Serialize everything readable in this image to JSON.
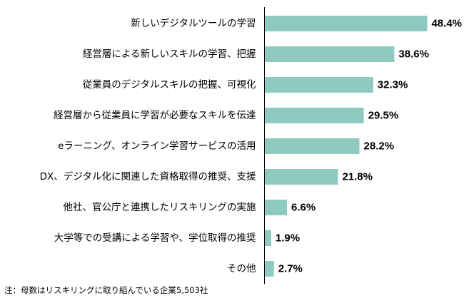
{
  "chart_data": {
    "type": "bar",
    "orientation": "horizontal",
    "categories": [
      "新しいデジタルツールの学習",
      "経営層による新しいスキルの学習、把握",
      "従業員のデジタルスキルの把握、可視化",
      "経営層から従業員に学習が必要なスキルを伝達",
      "eラーニング、オンライン学習サービスの活用",
      "DX、デジタル化に関連した資格取得の推奨、支援",
      "他社、官公庁と連携したリスキリングの実施",
      "大学等での受講による学習や、学位取得の推奨",
      "その他"
    ],
    "values": [
      48.4,
      38.6,
      32.3,
      29.5,
      28.2,
      21.8,
      6.6,
      1.9,
      2.7
    ],
    "value_labels": [
      "48.4%",
      "38.6%",
      "32.3%",
      "29.5%",
      "28.2%",
      "21.8%",
      "6.6%",
      "1.9%",
      "2.7%"
    ],
    "xlim": [
      0,
      50
    ],
    "grid": false,
    "legend": "none",
    "bar_color": "#8ecac0",
    "axis_color": "#000000"
  },
  "footnote": "注：母数はリスキリングに取り組んでいる企業5,503社"
}
